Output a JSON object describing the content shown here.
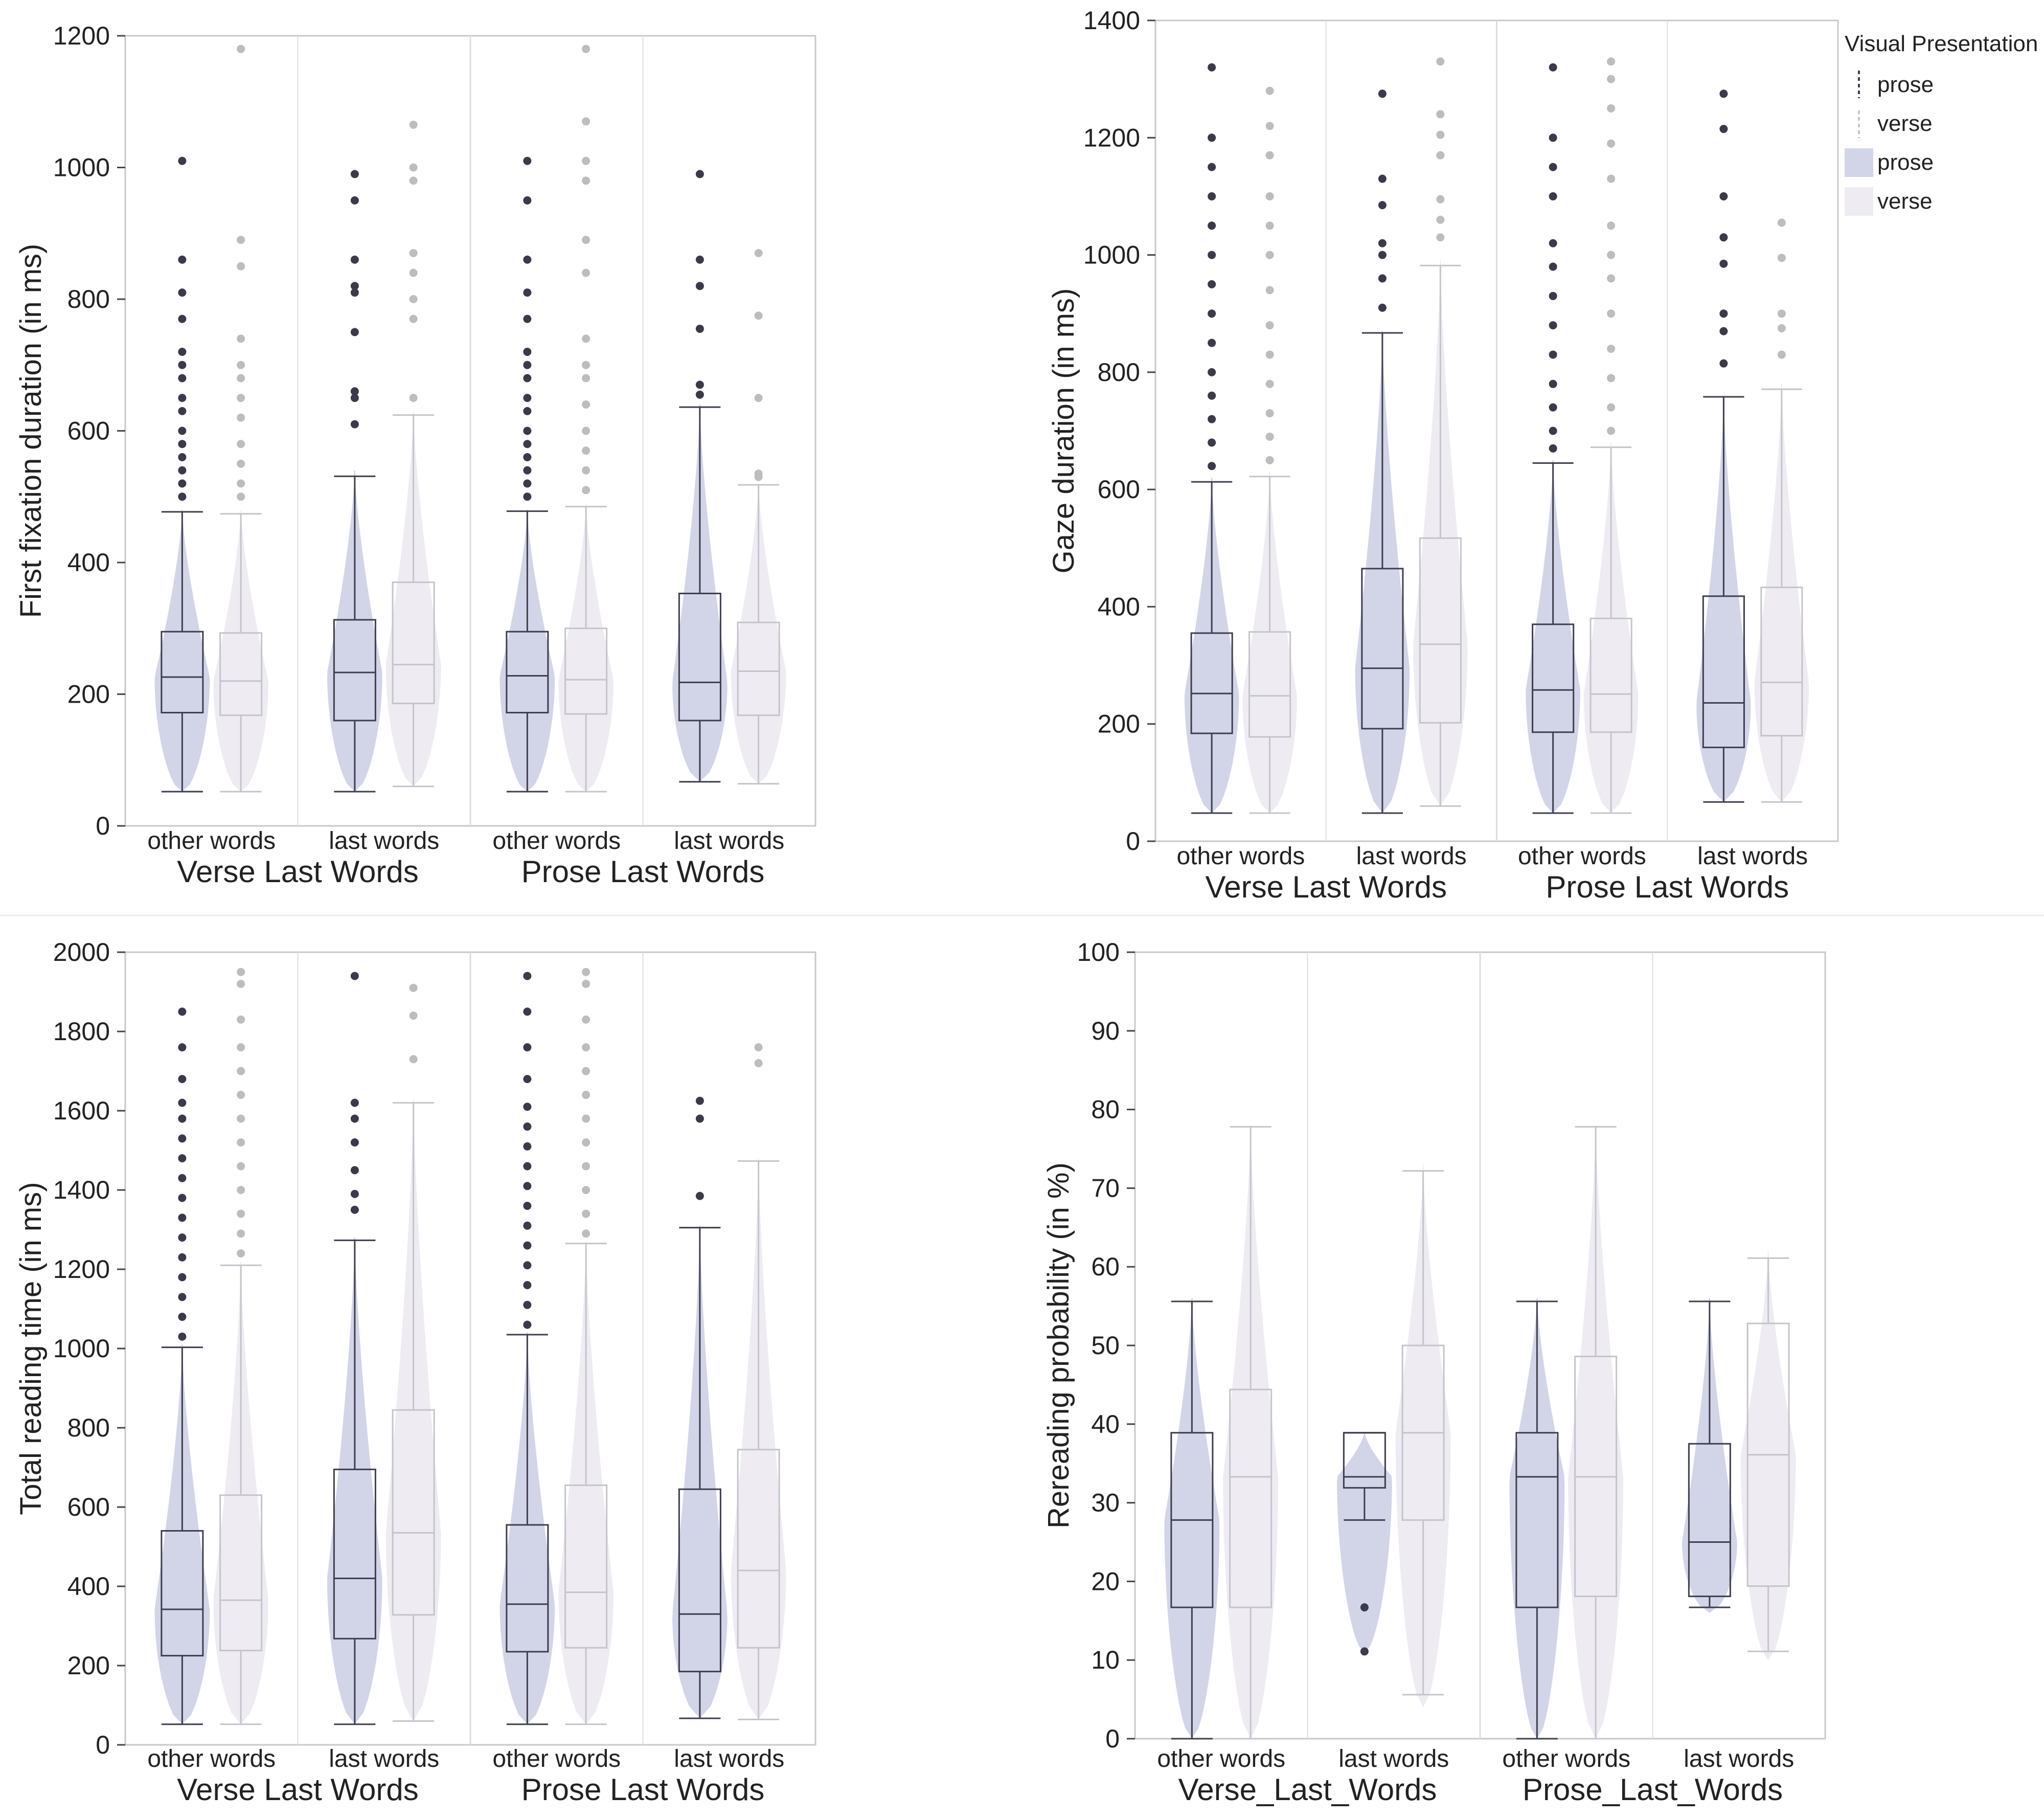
{
  "legend": {
    "title": "Visual Presentation",
    "line_items": [
      "prose",
      "verse"
    ],
    "fill_items": [
      "prose",
      "verse"
    ]
  },
  "colors": {
    "prose_fill": "#d2d5e8",
    "verse_fill": "#eeecf2",
    "prose_line": "#3e3e4e",
    "verse_line": "#c4c4cc",
    "prose_outlier": "#3a3a4a",
    "verse_outlier": "#bdbdbd",
    "frame": "#c8c8c8",
    "separator": "#dddddd"
  },
  "chart_data": [
    {
      "type": "boxplot-violin",
      "ylabel": "First fixation duration (in ms)",
      "ylim": [
        0,
        1200
      ],
      "yticks": [
        0,
        200,
        400,
        600,
        800,
        1000,
        1200
      ],
      "groups": [
        "Verse Last Words",
        "Prose Last Words"
      ],
      "categories": [
        "other words",
        "last words",
        "other words",
        "last words"
      ],
      "series": [
        {
          "name": "prose",
          "boxes": [
            {
              "min": 52,
              "q1": 172,
              "median": 226,
              "q3": 295,
              "max": 477,
              "violin_max": 480,
              "outliers": [
                500,
                520,
                540,
                560,
                580,
                600,
                630,
                650,
                680,
                700,
                720,
                770,
                810,
                860,
                1010
              ]
            },
            {
              "min": 52,
              "q1": 160,
              "median": 233,
              "q3": 313,
              "max": 531,
              "violin_max": 540,
              "outliers": [
                610,
                650,
                660,
                750,
                810,
                820,
                860,
                950,
                990
              ]
            },
            {
              "min": 52,
              "q1": 172,
              "median": 228,
              "q3": 295,
              "max": 478,
              "violin_max": 480,
              "outliers": [
                500,
                520,
                540,
                560,
                580,
                600,
                630,
                650,
                680,
                700,
                720,
                770,
                810,
                860,
                950,
                1010
              ]
            },
            {
              "min": 67,
              "q1": 160,
              "median": 218,
              "q3": 353,
              "max": 636,
              "violin_max": 640,
              "outliers": [
                655,
                670,
                755,
                820,
                860,
                990
              ]
            }
          ]
        },
        {
          "name": "verse",
          "boxes": [
            {
              "min": 52,
              "q1": 168,
              "median": 220,
              "q3": 293,
              "max": 474,
              "violin_max": 480,
              "outliers": [
                500,
                520,
                550,
                580,
                620,
                650,
                680,
                700,
                740,
                850,
                890,
                1180
              ]
            },
            {
              "min": 60,
              "q1": 186,
              "median": 245,
              "q3": 370,
              "max": 624,
              "violin_max": 630,
              "outliers": [
                650,
                770,
                800,
                840,
                870,
                980,
                1000,
                1065
              ]
            },
            {
              "min": 52,
              "q1": 170,
              "median": 222,
              "q3": 300,
              "max": 485,
              "violin_max": 490,
              "outliers": [
                510,
                540,
                570,
                600,
                640,
                680,
                700,
                740,
                840,
                890,
                980,
                1010,
                1070,
                1180
              ]
            },
            {
              "min": 64,
              "q1": 168,
              "median": 235,
              "q3": 309,
              "max": 518,
              "violin_max": 520,
              "outliers": [
                530,
                535,
                650,
                775,
                870
              ]
            }
          ]
        }
      ]
    },
    {
      "type": "boxplot-violin",
      "ylabel": "Gaze duration (in ms)",
      "ylim": [
        0,
        1400
      ],
      "yticks": [
        0,
        200,
        400,
        600,
        800,
        1000,
        1200,
        1400
      ],
      "groups": [
        "Verse Last Words",
        "Prose Last Words"
      ],
      "categories": [
        "other words",
        "last words",
        "other words",
        "last words"
      ],
      "series": [
        {
          "name": "prose",
          "boxes": [
            {
              "min": 48,
              "q1": 184,
              "median": 252,
              "q3": 355,
              "max": 613,
              "violin_max": 620,
              "outliers": [
                640,
                680,
                720,
                760,
                800,
                850,
                900,
                950,
                1000,
                1050,
                1100,
                1150,
                1200,
                1320
              ]
            },
            {
              "min": 48,
              "q1": 192,
              "median": 295,
              "q3": 465,
              "max": 867,
              "violin_max": 870,
              "outliers": [
                910,
                960,
                1000,
                1020,
                1085,
                1130,
                1275
              ]
            },
            {
              "min": 48,
              "q1": 186,
              "median": 258,
              "q3": 370,
              "max": 645,
              "violin_max": 650,
              "outliers": [
                670,
                700,
                740,
                780,
                830,
                880,
                930,
                980,
                1020,
                1100,
                1150,
                1200,
                1320
              ]
            },
            {
              "min": 67,
              "q1": 160,
              "median": 236,
              "q3": 418,
              "max": 758,
              "violin_max": 760,
              "outliers": [
                815,
                870,
                900,
                985,
                1030,
                1100,
                1215,
                1275
              ]
            }
          ]
        },
        {
          "name": "verse",
          "boxes": [
            {
              "min": 48,
              "q1": 178,
              "median": 248,
              "q3": 357,
              "max": 622,
              "violin_max": 630,
              "outliers": [
                650,
                690,
                730,
                780,
                830,
                880,
                940,
                1000,
                1050,
                1100,
                1170,
                1220,
                1280
              ]
            },
            {
              "min": 60,
              "q1": 202,
              "median": 336,
              "q3": 517,
              "max": 982,
              "violin_max": 990,
              "outliers": [
                1030,
                1060,
                1095,
                1170,
                1205,
                1240,
                1330
              ]
            },
            {
              "min": 48,
              "q1": 186,
              "median": 251,
              "q3": 380,
              "max": 672,
              "violin_max": 680,
              "outliers": [
                700,
                740,
                790,
                840,
                900,
                960,
                1000,
                1050,
                1130,
                1190,
                1250,
                1300,
                1330
              ]
            },
            {
              "min": 67,
              "q1": 180,
              "median": 271,
              "q3": 433,
              "max": 771,
              "violin_max": 780,
              "outliers": [
                830,
                875,
                900,
                995,
                1055
              ]
            }
          ]
        }
      ]
    },
    {
      "type": "boxplot-violin",
      "ylabel": "Total reading time (in ms)",
      "ylim": [
        0,
        2000
      ],
      "yticks": [
        0,
        200,
        400,
        600,
        800,
        1000,
        1200,
        1400,
        1600,
        1800,
        2000
      ],
      "groups": [
        "Verse Last Words",
        "Prose Last Words"
      ],
      "categories": [
        "other words",
        "last words",
        "other words",
        "last words"
      ],
      "series": [
        {
          "name": "prose",
          "boxes": [
            {
              "min": 52,
              "q1": 225,
              "median": 342,
              "q3": 540,
              "max": 1003,
              "violin_max": 1010,
              "outliers": [
                1030,
                1080,
                1130,
                1180,
                1230,
                1280,
                1330,
                1380,
                1430,
                1480,
                1530,
                1580,
                1620,
                1680,
                1760,
                1850
              ]
            },
            {
              "min": 52,
              "q1": 268,
              "median": 420,
              "q3": 695,
              "max": 1273,
              "violin_max": 1280,
              "outliers": [
                1350,
                1390,
                1450,
                1520,
                1580,
                1620,
                1940
              ]
            },
            {
              "min": 52,
              "q1": 235,
              "median": 355,
              "q3": 555,
              "max": 1035,
              "violin_max": 1040,
              "outliers": [
                1060,
                1110,
                1160,
                1210,
                1260,
                1310,
                1360,
                1410,
                1460,
                1510,
                1560,
                1610,
                1680,
                1760,
                1850,
                1940
              ]
            },
            {
              "min": 67,
              "q1": 185,
              "median": 330,
              "q3": 645,
              "max": 1305,
              "violin_max": 1310,
              "outliers": [
                1385,
                1580,
                1625
              ]
            }
          ]
        },
        {
          "name": "verse",
          "boxes": [
            {
              "min": 52,
              "q1": 238,
              "median": 365,
              "q3": 630,
              "max": 1210,
              "violin_max": 1220,
              "outliers": [
                1240,
                1290,
                1340,
                1400,
                1460,
                1520,
                1580,
                1640,
                1700,
                1760,
                1830,
                1920,
                1950
              ]
            },
            {
              "min": 60,
              "q1": 328,
              "median": 535,
              "q3": 845,
              "max": 1620,
              "violin_max": 1630,
              "outliers": [
                1730,
                1840,
                1910
              ]
            },
            {
              "min": 52,
              "q1": 245,
              "median": 385,
              "q3": 655,
              "max": 1265,
              "violin_max": 1270,
              "outliers": [
                1290,
                1340,
                1400,
                1460,
                1520,
                1580,
                1640,
                1700,
                1760,
                1830,
                1920,
                1950
              ]
            },
            {
              "min": 64,
              "q1": 245,
              "median": 440,
              "q3": 745,
              "max": 1473,
              "violin_max": 1480,
              "outliers": [
                1720,
                1760
              ]
            }
          ]
        }
      ]
    },
    {
      "type": "boxplot-violin",
      "ylabel": "Rereading probability (in %)",
      "ylim": [
        0,
        100
      ],
      "yticks": [
        0,
        10,
        20,
        30,
        40,
        50,
        60,
        70,
        80,
        90,
        100
      ],
      "groups": [
        "Verse_Last_Words",
        "Prose_Last_Words"
      ],
      "categories": [
        "other words",
        "last words",
        "other words",
        "last words"
      ],
      "series": [
        {
          "name": "prose",
          "boxes": [
            {
              "min": 0,
              "q1": 16.7,
              "median": 27.8,
              "q3": 38.9,
              "max": 55.6,
              "violin_min": 0,
              "violin_max": 56,
              "outliers": []
            },
            {
              "min": 27.8,
              "q1": 31.9,
              "median": 33.3,
              "q3": 38.9,
              "max": 38.9,
              "violin_min": 11,
              "violin_max": 39,
              "outliers": [
                11.1,
                16.7
              ]
            },
            {
              "min": 0,
              "q1": 16.7,
              "median": 33.3,
              "q3": 38.9,
              "max": 55.6,
              "violin_min": 0,
              "violin_max": 56,
              "outliers": []
            },
            {
              "min": 16.7,
              "q1": 18.1,
              "median": 25.0,
              "q3": 37.5,
              "max": 55.6,
              "violin_min": 16,
              "violin_max": 56,
              "outliers": []
            }
          ]
        },
        {
          "name": "verse",
          "boxes": [
            {
              "min": 0,
              "q1": 16.7,
              "median": 33.3,
              "q3": 44.4,
              "max": 77.8,
              "violin_min": 0,
              "violin_max": 78,
              "outliers": []
            },
            {
              "min": 5.6,
              "q1": 27.8,
              "median": 38.9,
              "q3": 50.0,
              "max": 72.2,
              "violin_min": 4,
              "violin_max": 73,
              "outliers": []
            },
            {
              "min": 0,
              "q1": 18.1,
              "median": 33.3,
              "q3": 48.6,
              "max": 77.8,
              "violin_min": 0,
              "violin_max": 78,
              "outliers": []
            },
            {
              "min": 11.1,
              "q1": 19.4,
              "median": 36.1,
              "q3": 52.8,
              "max": 61.1,
              "violin_min": 10,
              "violin_max": 62,
              "outliers": []
            }
          ]
        }
      ]
    }
  ]
}
